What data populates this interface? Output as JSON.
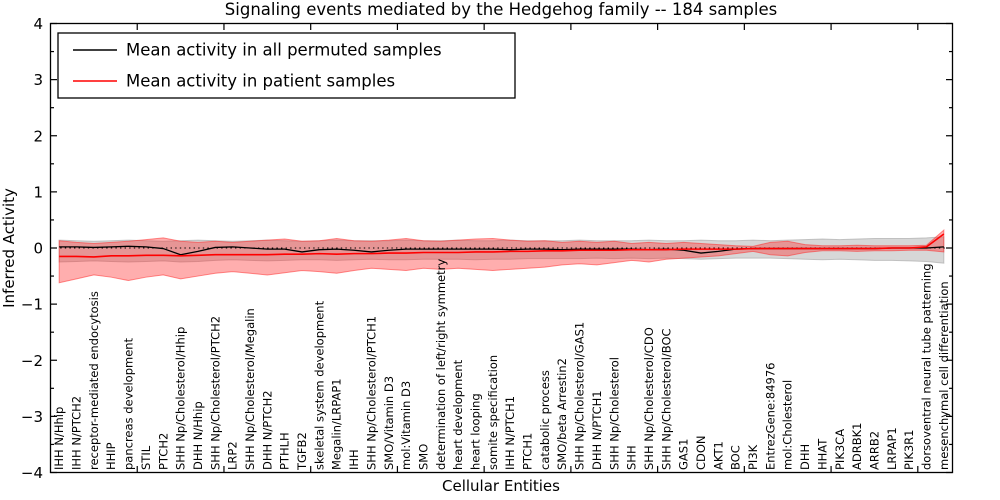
{
  "figure": {
    "background": "#ffffff",
    "border_color": "#000000"
  },
  "chart_data": {
    "type": "line",
    "title": "Signaling events mediated by the Hedgehog family -- 184 samples",
    "xlabel": "Cellular Entities",
    "ylabel": "Inferred Activity",
    "ylim": [
      -4,
      4
    ],
    "ytick_values": [
      -4,
      -3,
      -2,
      -1,
      0,
      1,
      2,
      3,
      4
    ],
    "ytick_minor_step": 0.5,
    "xtick_every_n_categories": 5,
    "grid": false,
    "zero_reference_line": {
      "y": 0,
      "style": "dotted",
      "color": "#000000"
    },
    "legend": {
      "position": "upper left",
      "border_color": "#000000",
      "background": "#ffffff"
    },
    "categories": [
      "IHH N/Hhip",
      "IHH N/PTCH2",
      "receptor-mediated endocytosis",
      "HHIP",
      "pancreas development",
      "STIL",
      "PTCH2",
      "SHH Np/Cholesterol/Hhip",
      "DHH N/Hhip",
      "SHH Np/Cholesterol/PTCH2",
      "LRP2",
      "SHH Np/Cholesterol/Megalin",
      "DHH N/PTCH2",
      "PTHLH",
      "TGFB2",
      "skeletal system development",
      "Megalin/LRPAP1",
      "IHH",
      "SHH Np/Cholesterol/PTCH1",
      "SMO/Vitamin D3",
      "mol:Vitamin D3",
      "SMO",
      "determination of left/right symmetry",
      "heart development",
      "heart looping",
      "somite specification",
      "IHH N/PTCH1",
      "PTCH1",
      "catabolic process",
      "SMO/beta Arrestin2",
      "SHH Np/Cholesterol/GAS1",
      "DHH N/PTCH1",
      "SHH Np/Cholesterol",
      "SHH",
      "SHH Np/Cholesterol/CDO",
      "SHH Np/Cholesterol/BOC",
      "GAS1",
      "CDON",
      "AKT1",
      "BOC",
      "PI3K",
      "EntrezGene:84976",
      "mol:Cholesterol",
      "DHH",
      "HHAT",
      "PIK3CA",
      "ADRBK1",
      "ARRB2",
      "LRPAP1",
      "PIK3R1",
      "dorsoventral neural tube patterning",
      "mesenchymal cell differentiation"
    ],
    "series": [
      {
        "id": "permuted_mean",
        "name": "Mean activity in all permuted samples",
        "color": "#000000",
        "values": [
          0.02,
          0.02,
          0.01,
          0.02,
          0.03,
          0.02,
          -0.01,
          -0.12,
          -0.06,
          0.01,
          0.02,
          0.0,
          -0.02,
          -0.02,
          -0.07,
          -0.03,
          -0.02,
          -0.04,
          -0.07,
          -0.04,
          -0.02,
          -0.02,
          -0.02,
          -0.02,
          -0.02,
          -0.02,
          -0.03,
          -0.02,
          -0.02,
          -0.03,
          -0.02,
          -0.02,
          -0.02,
          -0.02,
          -0.03,
          -0.02,
          -0.04,
          -0.09,
          -0.06,
          -0.02,
          -0.01,
          -0.01,
          -0.01,
          -0.01,
          -0.01,
          -0.01,
          -0.01,
          -0.01,
          0.0,
          0.0,
          0.0,
          0.02
        ]
      },
      {
        "id": "patient_mean",
        "name": "Mean activity in patient samples",
        "color": "#ff0000",
        "values": [
          -0.15,
          -0.15,
          -0.16,
          -0.14,
          -0.14,
          -0.13,
          -0.13,
          -0.14,
          -0.13,
          -0.12,
          -0.12,
          -0.12,
          -0.12,
          -0.11,
          -0.11,
          -0.1,
          -0.11,
          -0.1,
          -0.1,
          -0.09,
          -0.09,
          -0.08,
          -0.08,
          -0.08,
          -0.07,
          -0.07,
          -0.06,
          -0.06,
          -0.05,
          -0.05,
          -0.04,
          -0.04,
          -0.04,
          -0.03,
          -0.03,
          -0.03,
          -0.02,
          -0.02,
          -0.02,
          -0.02,
          -0.01,
          -0.01,
          -0.01,
          -0.01,
          -0.01,
          -0.01,
          -0.01,
          -0.01,
          0.0,
          0.0,
          0.02,
          0.25
        ]
      }
    ],
    "bands": [
      {
        "id": "permuted_band",
        "name": "Permuted samples spread",
        "color": "#a0a0a0",
        "opacity": 0.42,
        "upper": [
          0.14,
          0.13,
          0.12,
          0.13,
          0.14,
          0.13,
          0.12,
          0.13,
          0.14,
          0.13,
          0.12,
          0.13,
          0.14,
          0.13,
          0.12,
          0.13,
          0.14,
          0.13,
          0.13,
          0.13,
          0.14,
          0.13,
          0.13,
          0.14,
          0.13,
          0.13,
          0.14,
          0.13,
          0.13,
          0.13,
          0.14,
          0.13,
          0.13,
          0.13,
          0.14,
          0.13,
          0.13,
          0.14,
          0.13,
          0.13,
          0.14,
          0.13,
          0.14,
          0.15,
          0.16,
          0.15,
          0.16,
          0.17,
          0.17,
          0.17,
          0.18,
          0.2
        ],
        "lower": [
          -0.25,
          -0.24,
          -0.23,
          -0.24,
          -0.25,
          -0.24,
          -0.23,
          -0.25,
          -0.24,
          -0.22,
          -0.21,
          -0.22,
          -0.23,
          -0.22,
          -0.21,
          -0.21,
          -0.22,
          -0.21,
          -0.2,
          -0.21,
          -0.21,
          -0.2,
          -0.2,
          -0.2,
          -0.21,
          -0.2,
          -0.2,
          -0.19,
          -0.19,
          -0.19,
          -0.19,
          -0.18,
          -0.19,
          -0.18,
          -0.19,
          -0.18,
          -0.19,
          -0.2,
          -0.19,
          -0.18,
          -0.18,
          -0.18,
          -0.19,
          -0.2,
          -0.21,
          -0.2,
          -0.21,
          -0.22,
          -0.22,
          -0.23,
          -0.24,
          -0.27
        ]
      },
      {
        "id": "patient_band",
        "name": "Patient samples spread",
        "color": "#ff2a2a",
        "opacity": 0.38,
        "upper": [
          0.13,
          0.1,
          0.08,
          0.1,
          0.12,
          0.15,
          0.18,
          0.12,
          0.1,
          0.12,
          0.1,
          0.12,
          0.14,
          0.16,
          0.12,
          0.13,
          0.17,
          0.13,
          0.12,
          0.14,
          0.17,
          0.13,
          0.12,
          0.14,
          0.16,
          0.17,
          0.14,
          0.12,
          0.13,
          0.1,
          0.12,
          0.1,
          0.12,
          0.08,
          0.1,
          0.08,
          0.1,
          0.08,
          0.06,
          0.04,
          0.03,
          0.1,
          0.12,
          0.06,
          0.04,
          0.04,
          0.05,
          0.04,
          0.04,
          0.04,
          0.05,
          0.32
        ],
        "lower": [
          -0.62,
          -0.55,
          -0.48,
          -0.52,
          -0.58,
          -0.52,
          -0.48,
          -0.55,
          -0.5,
          -0.45,
          -0.42,
          -0.45,
          -0.48,
          -0.44,
          -0.4,
          -0.42,
          -0.45,
          -0.4,
          -0.36,
          -0.38,
          -0.4,
          -0.36,
          -0.38,
          -0.36,
          -0.38,
          -0.4,
          -0.38,
          -0.36,
          -0.34,
          -0.3,
          -0.28,
          -0.3,
          -0.26,
          -0.22,
          -0.25,
          -0.2,
          -0.18,
          -0.16,
          -0.14,
          -0.1,
          -0.06,
          -0.12,
          -0.14,
          -0.08,
          -0.05,
          -0.05,
          -0.06,
          -0.05,
          -0.05,
          -0.04,
          -0.04,
          -0.07
        ]
      }
    ]
  }
}
